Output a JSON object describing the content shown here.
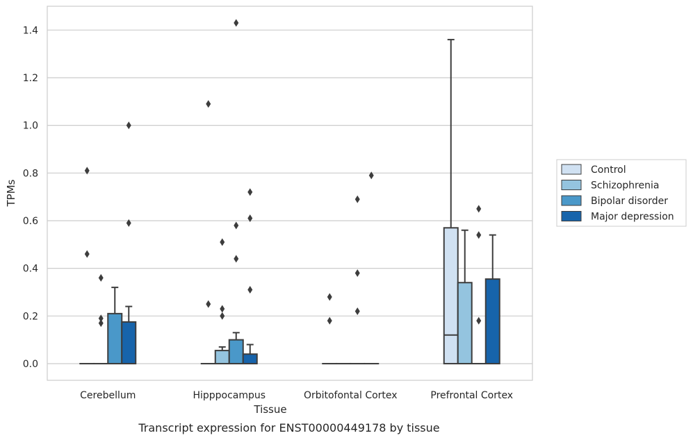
{
  "caption": "Transcript expression for ENST00000449178 by tissue",
  "chart_data": {
    "type": "box",
    "xlabel": "Tissue",
    "ylabel": "TPMs",
    "ylim": [
      -0.07,
      1.5
    ],
    "yticks": [
      "0.0",
      "0.2",
      "0.4",
      "0.6",
      "0.8",
      "1.0",
      "1.2",
      "1.4"
    ],
    "grid": "horizontal",
    "legend_position": "right",
    "categories": [
      "Cerebellum",
      "Hipppocampus",
      "Orbitofontal Cortex",
      "Prefrontal Cortex"
    ],
    "series": [
      {
        "name": "Control",
        "color": "#d0e1f2",
        "boxes": [
          {
            "q1": 0,
            "median": 0,
            "q3": 0,
            "whisker_low": 0,
            "whisker_high": 0,
            "outliers": [
              0.81,
              0.46
            ]
          },
          {
            "q1": 0,
            "median": 0,
            "q3": 0,
            "whisker_low": 0,
            "whisker_high": 0,
            "outliers": [
              1.09,
              0.25
            ]
          },
          {
            "q1": 0,
            "median": 0,
            "q3": 0,
            "whisker_low": 0,
            "whisker_high": 0,
            "outliers": [
              0.28,
              0.18
            ]
          },
          {
            "q1": 0,
            "median": 0.12,
            "q3": 0.57,
            "whisker_low": 0,
            "whisker_high": 1.36,
            "outliers": []
          }
        ]
      },
      {
        "name": "Schizophrenia",
        "color": "#94c4df",
        "boxes": [
          {
            "q1": 0,
            "median": 0,
            "q3": 0,
            "whisker_low": 0,
            "whisker_high": 0,
            "outliers": [
              0.36,
              0.19,
              0.17
            ]
          },
          {
            "q1": 0,
            "median": 0,
            "q3": 0.055,
            "whisker_low": 0,
            "whisker_high": 0.07,
            "outliers": [
              0.51,
              0.23,
              0.2
            ]
          },
          {
            "q1": 0,
            "median": 0,
            "q3": 0,
            "whisker_low": 0,
            "whisker_high": 0,
            "outliers": []
          },
          {
            "q1": 0,
            "median": 0,
            "q3": 0.34,
            "whisker_low": 0,
            "whisker_high": 0.56,
            "outliers": []
          }
        ]
      },
      {
        "name": "Bipolar disorder",
        "color": "#4a98c9",
        "boxes": [
          {
            "q1": 0,
            "median": 0,
            "q3": 0.21,
            "whisker_low": 0,
            "whisker_high": 0.32,
            "outliers": []
          },
          {
            "q1": 0,
            "median": 0,
            "q3": 0.1,
            "whisker_low": 0,
            "whisker_high": 0.13,
            "outliers": [
              1.43,
              0.58,
              0.44
            ]
          },
          {
            "q1": 0,
            "median": 0,
            "q3": 0,
            "whisker_low": 0,
            "whisker_high": 0,
            "outliers": [
              0.69,
              0.38,
              0.22
            ]
          },
          {
            "q1": 0,
            "median": 0,
            "q3": 0,
            "whisker_low": 0,
            "whisker_high": 0,
            "outliers": [
              0.65,
              0.54,
              0.18
            ]
          }
        ]
      },
      {
        "name": "Major depression",
        "color": "#1764ab",
        "boxes": [
          {
            "q1": 0,
            "median": 0,
            "q3": 0.175,
            "whisker_low": 0,
            "whisker_high": 0.24,
            "outliers": [
              1.0,
              0.59
            ]
          },
          {
            "q1": 0,
            "median": 0,
            "q3": 0.04,
            "whisker_low": 0,
            "whisker_high": 0.08,
            "outliers": [
              0.72,
              0.61,
              0.31
            ]
          },
          {
            "q1": 0,
            "median": 0,
            "q3": 0,
            "whisker_low": 0,
            "whisker_high": 0,
            "outliers": [
              0.79
            ]
          },
          {
            "q1": 0,
            "median": 0,
            "q3": 0.355,
            "whisker_low": 0,
            "whisker_high": 0.54,
            "outliers": []
          }
        ]
      }
    ]
  }
}
